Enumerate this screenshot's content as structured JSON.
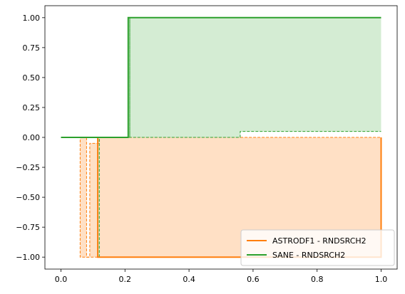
{
  "chart_data": {
    "type": "line",
    "title": "",
    "xlabel": "",
    "ylabel": "",
    "xlim": [
      -0.05,
      1.05
    ],
    "ylim": [
      -1.1,
      1.1
    ],
    "x_ticks": [
      {
        "value": 0.0,
        "label": "0.0"
      },
      {
        "value": 0.2,
        "label": "0.2"
      },
      {
        "value": 0.4,
        "label": "0.4"
      },
      {
        "value": 0.6,
        "label": "0.6"
      },
      {
        "value": 0.8,
        "label": "0.8"
      },
      {
        "value": 1.0,
        "label": "1.0"
      }
    ],
    "y_ticks": [
      {
        "value": 1.0,
        "label": "1.00"
      },
      {
        "value": 0.75,
        "label": "0.75"
      },
      {
        "value": 0.5,
        "label": "0.50"
      },
      {
        "value": 0.25,
        "label": "0.25"
      },
      {
        "value": 0.0,
        "label": "0.00"
      },
      {
        "value": -0.25,
        "label": "−0.25"
      },
      {
        "value": -0.5,
        "label": "−0.50"
      },
      {
        "value": -0.75,
        "label": "−0.75"
      },
      {
        "value": -1.0,
        "label": "−1.00"
      }
    ],
    "grid": false,
    "legend_position": "lower-right",
    "series": [
      {
        "name": "ASTRODF1 - RNDSRCH2",
        "color": "#ff7f0e",
        "fill_color": "#ffe0c5",
        "steps": [
          [
            0.0,
            0.0
          ],
          [
            0.115,
            0.0
          ],
          [
            0.115,
            -1.0
          ],
          [
            1.0,
            -1.0
          ],
          [
            1.0,
            0.0
          ]
        ],
        "band_lower": [
          [
            0.0,
            0.0
          ],
          [
            0.06,
            0.0
          ],
          [
            0.06,
            -1.0
          ],
          [
            1.0,
            -1.0
          ]
        ],
        "band_upper": [
          [
            0.0,
            0.0
          ],
          [
            0.08,
            0.0
          ],
          [
            0.08,
            -1.0
          ],
          [
            0.09,
            -1.0
          ],
          [
            0.09,
            -0.05
          ],
          [
            0.12,
            -0.05
          ],
          [
            0.12,
            0.0
          ],
          [
            1.0,
            0.0
          ]
        ]
      },
      {
        "name": "SANE - RNDSRCH2",
        "color": "#2ca02c",
        "fill_color": "#d4ecd3",
        "steps": [
          [
            0.0,
            0.0
          ],
          [
            0.21,
            0.0
          ],
          [
            0.21,
            1.0
          ],
          [
            1.0,
            1.0
          ]
        ],
        "band_upper": [
          [
            0.0,
            0.0
          ],
          [
            0.21,
            0.0
          ],
          [
            0.21,
            1.0
          ],
          [
            1.0,
            1.0
          ]
        ],
        "band_lower": [
          [
            0.0,
            0.0
          ],
          [
            0.115,
            0.0
          ],
          [
            0.115,
            -1.0
          ],
          [
            0.12,
            -1.0
          ],
          [
            0.12,
            0.0
          ],
          [
            0.215,
            0.0
          ],
          [
            0.215,
            1.0
          ],
          [
            0.215,
            0.0
          ],
          [
            0.56,
            0.0
          ],
          [
            0.56,
            0.05
          ],
          [
            1.0,
            0.05
          ]
        ]
      }
    ]
  }
}
